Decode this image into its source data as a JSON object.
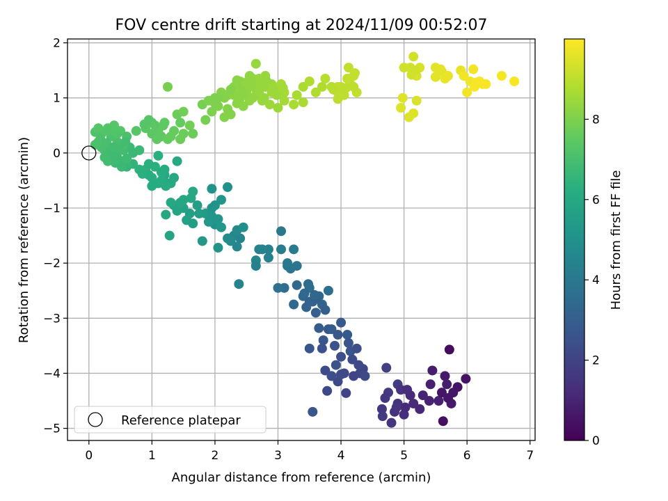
{
  "chart_data": {
    "type": "scatter",
    "title": "FOV centre drift starting at 2024/11/09 00:52:07",
    "xlabel": "Angular distance from reference (arcmin)",
    "ylabel": "Rotation from reference (arcmin)",
    "xlim": [
      -0.34,
      7.08
    ],
    "ylim": [
      -5.22,
      2.07
    ],
    "xticks": [
      0,
      1,
      2,
      3,
      4,
      5,
      6,
      7
    ],
    "yticks": [
      -5,
      -4,
      -3,
      -2,
      -1,
      0,
      1,
      2
    ],
    "xtick_labels": [
      "0",
      "1",
      "2",
      "3",
      "4",
      "5",
      "6",
      "7"
    ],
    "ytick_labels": [
      "−5",
      "−4",
      "−3",
      "−2",
      "−1",
      "0",
      "1",
      "2"
    ],
    "grid": true,
    "colorbar": {
      "label": "Hours from first FF file",
      "range": [
        0,
        10
      ],
      "ticks": [
        0,
        2,
        4,
        6,
        8
      ],
      "tick_labels": [
        "0",
        "2",
        "4",
        "6",
        "8"
      ],
      "colormap": "viridis"
    },
    "legend": {
      "position": "lower-left",
      "entries": [
        "Reference platepar"
      ]
    },
    "reference_point": {
      "x": 0,
      "y": 0,
      "label": "Reference platepar"
    },
    "points": [
      [
        5.72,
        -3.57,
        0.3
      ],
      [
        5.62,
        -4.87,
        0.4
      ],
      [
        5.98,
        -4.1,
        0.5
      ],
      [
        5.78,
        -4.35,
        0.6
      ],
      [
        5.65,
        -4.05,
        0.7
      ],
      [
        5.45,
        -3.95,
        0.8
      ],
      [
        5.55,
        -4.5,
        0.9
      ],
      [
        5.4,
        -4.5,
        1.0
      ],
      [
        5.25,
        -4.65,
        1.1
      ],
      [
        5.1,
        -4.4,
        1.2
      ],
      [
        5.0,
        -4.75,
        1.3
      ],
      [
        4.9,
        -4.55,
        1.4
      ],
      [
        4.8,
        -4.9,
        1.5
      ],
      [
        4.65,
        -4.65,
        1.6
      ],
      [
        4.75,
        -4.35,
        1.7
      ],
      [
        4.9,
        -4.2,
        1.8
      ],
      [
        4.72,
        -3.9,
        1.9
      ],
      [
        5.68,
        -4.2,
        0.8
      ],
      [
        5.75,
        -4.55,
        0.7
      ],
      [
        5.3,
        -4.4,
        1.0
      ],
      [
        5.02,
        -4.62,
        1.2
      ],
      [
        4.85,
        -4.7,
        1.4
      ],
      [
        5.42,
        -4.2,
        0.9
      ],
      [
        5.6,
        -4.35,
        0.6
      ],
      [
        5.85,
        -4.25,
        0.5
      ],
      [
        4.95,
        -4.3,
        1.5
      ],
      [
        4.7,
        -4.45,
        1.6
      ],
      [
        5.15,
        -4.55,
        1.2
      ],
      [
        4.88,
        -4.62,
        1.5
      ],
      [
        5.05,
        -4.3,
        1.3
      ],
      [
        4.66,
        -4.78,
        1.7
      ],
      [
        5.7,
        -4.45,
        0.6
      ],
      [
        4.2,
        -4.05,
        2.0
      ],
      [
        4.35,
        -3.92,
        2.1
      ],
      [
        4.05,
        -4.0,
        2.2
      ],
      [
        3.85,
        -4.05,
        2.3
      ],
      [
        4.0,
        -3.7,
        2.4
      ],
      [
        3.9,
        -3.5,
        2.5
      ],
      [
        4.15,
        -3.6,
        2.6
      ],
      [
        3.8,
        -3.2,
        2.7
      ],
      [
        4.1,
        -3.3,
        2.8
      ],
      [
        4.25,
        -3.55,
        2.4
      ],
      [
        4.3,
        -4.0,
        2.1
      ],
      [
        3.95,
        -4.15,
        2.2
      ],
      [
        3.75,
        -3.95,
        2.3
      ],
      [
        4.08,
        -4.36,
        2.0
      ],
      [
        3.7,
        -3.55,
        2.5
      ],
      [
        3.5,
        -3.55,
        2.6
      ],
      [
        3.55,
        -4.7,
        2.7
      ],
      [
        3.85,
        -4.05,
        2.4
      ],
      [
        3.92,
        -3.85,
        2.5
      ],
      [
        4.18,
        -3.75,
        2.3
      ],
      [
        4.28,
        -3.85,
        2.2
      ],
      [
        4.12,
        -3.45,
        2.6
      ],
      [
        4.0,
        -3.08,
        2.8
      ],
      [
        3.85,
        -3.2,
        2.9
      ],
      [
        3.72,
        -3.4,
        2.7
      ],
      [
        3.65,
        -3.18,
        2.9
      ],
      [
        4.0,
        -4.02,
        2.3
      ],
      [
        3.78,
        -4.32,
        2.2
      ],
      [
        3.95,
        -3.3,
        2.7
      ],
      [
        4.38,
        -4.05,
        2.2
      ],
      [
        3.6,
        -2.9,
        3.0
      ],
      [
        3.55,
        -2.7,
        3.1
      ],
      [
        3.7,
        -2.75,
        3.2
      ],
      [
        3.4,
        -2.6,
        3.3
      ],
      [
        3.3,
        -2.4,
        3.4
      ],
      [
        3.5,
        -2.45,
        3.5
      ],
      [
        3.8,
        -2.5,
        3.6
      ],
      [
        3.65,
        -2.6,
        3.3
      ],
      [
        3.45,
        -2.8,
        3.2
      ],
      [
        3.25,
        -2.75,
        3.4
      ],
      [
        3.1,
        -2.45,
        3.6
      ],
      [
        3.0,
        -2.45,
        3.7
      ],
      [
        3.2,
        -2.1,
        3.8
      ],
      [
        3.15,
        -2.05,
        3.9
      ],
      [
        3.3,
        -2.05,
        3.9
      ],
      [
        3.5,
        -2.7,
        3.2
      ],
      [
        3.6,
        -2.65,
        3.1
      ],
      [
        3.42,
        -2.55,
        3.4
      ],
      [
        3.58,
        -2.58,
        3.3
      ],
      [
        3.75,
        -2.85,
        3.0
      ],
      [
        3.48,
        -2.38,
        3.5
      ],
      [
        3.05,
        -1.42,
        4.0
      ],
      [
        3.25,
        -1.75,
        4.1
      ],
      [
        3.05,
        -1.75,
        4.2
      ],
      [
        2.85,
        -1.75,
        4.3
      ],
      [
        2.7,
        -1.75,
        4.4
      ],
      [
        2.65,
        -1.95,
        4.5
      ],
      [
        2.65,
        -2.05,
        4.3
      ],
      [
        2.38,
        -2.38,
        4.4
      ],
      [
        2.4,
        -1.55,
        4.5
      ],
      [
        2.3,
        -1.5,
        4.6
      ],
      [
        2.35,
        -1.4,
        4.7
      ],
      [
        2.2,
        -1.55,
        4.8
      ],
      [
        2.35,
        -1.7,
        4.6
      ],
      [
        2.75,
        -1.75,
        4.4
      ],
      [
        2.85,
        -1.9,
        4.3
      ],
      [
        3.15,
        -2.0,
        4.0
      ],
      [
        2.25,
        -1.6,
        4.7
      ],
      [
        2.45,
        -1.35,
        4.9
      ],
      [
        2.0,
        -1.3,
        5.0
      ],
      [
        1.95,
        -1.0,
        5.1
      ],
      [
        2.05,
        -1.2,
        5.2
      ],
      [
        2.1,
        -1.35,
        5.3
      ],
      [
        1.85,
        -1.1,
        5.4
      ],
      [
        1.75,
        -1.1,
        5.5
      ],
      [
        1.6,
        -1.1,
        5.6
      ],
      [
        1.5,
        -1.0,
        5.7
      ],
      [
        1.35,
        -0.95,
        5.8
      ],
      [
        1.5,
        -0.85,
        5.9
      ],
      [
        1.65,
        -0.7,
        6.0
      ],
      [
        1.8,
        -1.6,
        5.3
      ],
      [
        1.95,
        -0.65,
        5.1
      ],
      [
        2.2,
        -0.62,
        5.0
      ],
      [
        2.1,
        -0.85,
        5.2
      ],
      [
        1.9,
        -1.25,
        5.3
      ],
      [
        1.72,
        -0.95,
        5.6
      ],
      [
        1.28,
        -1.5,
        5.8
      ],
      [
        1.55,
        -1.22,
        5.7
      ],
      [
        1.65,
        -1.28,
        5.5
      ],
      [
        2.05,
        -1.72,
        5.1
      ],
      [
        1.22,
        -1.12,
        5.9
      ],
      [
        1.4,
        -1.05,
        5.8
      ],
      [
        1.62,
        -0.82,
        5.9
      ],
      [
        1.95,
        -1.15,
        5.2
      ],
      [
        2.0,
        -0.95,
        5.1
      ],
      [
        1.3,
        -0.9,
        6.0
      ],
      [
        1.45,
        -0.9,
        5.9
      ],
      [
        1.2,
        -0.4,
        6.0
      ],
      [
        1.1,
        -0.55,
        6.1
      ],
      [
        1.0,
        -0.45,
        6.2
      ],
      [
        1.05,
        -0.25,
        6.3
      ],
      [
        0.9,
        -0.3,
        6.4
      ],
      [
        0.8,
        -0.3,
        6.4
      ],
      [
        0.7,
        -0.2,
        6.5
      ],
      [
        0.55,
        -0.15,
        6.6
      ],
      [
        0.4,
        -0.1,
        6.7
      ],
      [
        0.3,
        -0.05,
        6.8
      ],
      [
        1.4,
        -0.15,
        6.0
      ],
      [
        1.25,
        -0.55,
        6.1
      ],
      [
        1.15,
        -0.35,
        6.2
      ],
      [
        0.95,
        -0.4,
        6.2
      ],
      [
        1.3,
        -0.55,
        6.0
      ],
      [
        1.2,
        -0.3,
        6.1
      ],
      [
        1.35,
        -0.45,
        6.0
      ],
      [
        1.15,
        -0.5,
        6.2
      ],
      [
        1.0,
        -0.6,
        6.1
      ],
      [
        1.1,
        -0.05,
        6.3
      ],
      [
        0.95,
        -0.2,
        6.3
      ],
      [
        1.22,
        -0.6,
        6.1
      ],
      [
        0.85,
        -0.38,
        6.3
      ],
      [
        0.35,
        -0.1,
        6.9
      ],
      [
        0.25,
        0.15,
        7.0
      ],
      [
        0.15,
        0.2,
        7.1
      ],
      [
        0.2,
        0.35,
        7.2
      ],
      [
        0.3,
        0.45,
        7.2
      ],
      [
        0.4,
        0.5,
        7.3
      ],
      [
        0.5,
        0.4,
        7.3
      ],
      [
        0.6,
        0.3,
        7.1
      ],
      [
        0.1,
        0.38,
        7.2
      ],
      [
        0.3,
        0.1,
        6.9
      ],
      [
        0.45,
        0.2,
        7.0
      ],
      [
        0.55,
        0.05,
        6.9
      ],
      [
        0.65,
        0.1,
        6.8
      ],
      [
        0.7,
        0.0,
        6.7
      ],
      [
        0.8,
        0.05,
        6.7
      ],
      [
        0.25,
        0.05,
        6.9
      ],
      [
        0.45,
        -0.08,
        6.8
      ],
      [
        0.5,
        -0.2,
        6.7
      ],
      [
        0.6,
        -0.25,
        6.6
      ],
      [
        0.4,
        0.0,
        6.8
      ],
      [
        0.35,
        0.3,
        7.1
      ],
      [
        0.15,
        0.45,
        7.3
      ],
      [
        0.2,
        0.1,
        7.0
      ],
      [
        0.3,
        -0.15,
        6.9
      ],
      [
        0.45,
        0.35,
        7.2
      ],
      [
        0.55,
        0.15,
        7.0
      ],
      [
        0.38,
        -0.05,
        6.8
      ],
      [
        0.6,
        -0.1,
        6.8
      ],
      [
        0.1,
        0.15,
        7.1
      ],
      [
        0.25,
        -0.08,
        6.9
      ],
      [
        0.18,
        0.25,
        7.1
      ],
      [
        0.28,
        0.18,
        7.0
      ],
      [
        0.38,
        0.1,
        6.9
      ],
      [
        0.48,
        0.08,
        6.9
      ],
      [
        0.58,
        0.2,
        6.9
      ],
      [
        0.42,
        -0.18,
        6.8
      ],
      [
        0.52,
        -0.25,
        6.7
      ],
      [
        0.32,
        0.4,
        7.2
      ],
      [
        0.75,
        0.4,
        7.3
      ],
      [
        0.9,
        0.45,
        7.4
      ],
      [
        1.0,
        0.55,
        7.4
      ],
      [
        1.1,
        0.4,
        7.5
      ],
      [
        1.2,
        0.55,
        7.5
      ],
      [
        1.3,
        0.3,
        7.6
      ],
      [
        1.45,
        0.55,
        7.6
      ],
      [
        1.5,
        0.35,
        7.7
      ],
      [
        0.95,
        0.6,
        7.3
      ],
      [
        1.05,
        0.5,
        7.4
      ],
      [
        1.15,
        0.3,
        7.5
      ],
      [
        1.4,
        0.7,
        7.7
      ],
      [
        1.5,
        0.75,
        7.8
      ],
      [
        1.6,
        0.5,
        7.8
      ],
      [
        1.25,
        1.2,
        7.9
      ],
      [
        1.65,
        0.35,
        7.7
      ],
      [
        1.0,
        0.35,
        7.4
      ],
      [
        1.08,
        0.25,
        7.5
      ],
      [
        1.18,
        0.5,
        7.5
      ],
      [
        1.35,
        0.4,
        7.6
      ],
      [
        1.25,
        0.25,
        7.6
      ],
      [
        1.45,
        0.25,
        7.7
      ],
      [
        0.88,
        0.52,
        7.3
      ],
      [
        1.8,
        0.88,
        7.9
      ],
      [
        1.9,
        0.95,
        8.0
      ],
      [
        2.0,
        1.0,
        8.0
      ],
      [
        2.1,
        1.1,
        8.1
      ],
      [
        2.2,
        1.05,
        8.1
      ],
      [
        2.3,
        1.2,
        8.2
      ],
      [
        2.4,
        1.3,
        8.2
      ],
      [
        2.5,
        1.25,
        8.3
      ],
      [
        2.6,
        1.35,
        8.3
      ],
      [
        2.7,
        1.35,
        8.4
      ],
      [
        2.8,
        1.4,
        8.4
      ],
      [
        2.9,
        1.25,
        8.5
      ],
      [
        3.0,
        1.15,
        8.5
      ],
      [
        3.1,
        1.1,
        8.6
      ],
      [
        2.4,
        1.0,
        8.2
      ],
      [
        2.5,
        1.1,
        8.3
      ],
      [
        2.6,
        1.2,
        8.3
      ],
      [
        2.65,
        1.05,
        8.3
      ],
      [
        2.75,
        0.95,
        8.4
      ],
      [
        2.55,
        0.95,
        8.3
      ],
      [
        2.45,
        1.05,
        8.2
      ],
      [
        2.35,
        0.9,
        8.2
      ],
      [
        2.2,
        0.8,
        8.1
      ],
      [
        2.15,
        0.65,
        8.1
      ],
      [
        2.25,
        0.7,
        8.1
      ],
      [
        1.85,
        0.6,
        7.9
      ],
      [
        1.95,
        0.75,
        8.0
      ],
      [
        2.05,
        0.85,
        8.0
      ],
      [
        2.3,
        1.05,
        8.2
      ],
      [
        2.55,
        1.4,
        8.3
      ],
      [
        2.65,
        1.62,
        8.4
      ],
      [
        2.8,
        1.2,
        8.4
      ],
      [
        2.9,
        1.1,
        8.5
      ],
      [
        3.0,
        0.82,
        8.5
      ],
      [
        3.1,
        0.95,
        8.6
      ],
      [
        2.7,
        1.1,
        8.4
      ],
      [
        2.6,
        1.0,
        8.3
      ],
      [
        2.42,
        1.15,
        8.2
      ],
      [
        2.52,
        1.3,
        8.3
      ],
      [
        2.62,
        1.28,
        8.3
      ],
      [
        2.72,
        1.25,
        8.4
      ],
      [
        2.82,
        1.3,
        8.4
      ],
      [
        2.92,
        1.2,
        8.5
      ],
      [
        3.05,
        1.25,
        8.6
      ],
      [
        2.35,
        1.25,
        8.2
      ],
      [
        2.25,
        1.15,
        8.1
      ],
      [
        2.15,
        1.0,
        8.1
      ],
      [
        2.05,
        1.0,
        8.0
      ],
      [
        2.0,
        0.9,
        8.0
      ],
      [
        2.45,
        0.85,
        8.2
      ],
      [
        2.35,
        1.32,
        8.2
      ],
      [
        2.78,
        1.0,
        8.4
      ],
      [
        2.87,
        0.88,
        8.5
      ],
      [
        2.98,
        1.05,
        8.5
      ],
      [
        3.08,
        1.18,
        8.6
      ],
      [
        3.3,
        1.05,
        8.7
      ],
      [
        3.4,
        1.2,
        8.7
      ],
      [
        3.5,
        1.3,
        8.8
      ],
      [
        3.6,
        1.1,
        8.8
      ],
      [
        3.75,
        1.35,
        8.9
      ],
      [
        3.85,
        1.2,
        8.9
      ],
      [
        3.95,
        1.1,
        9.0
      ],
      [
        4.0,
        1.2,
        9.0
      ],
      [
        4.05,
        1.05,
        9.0
      ],
      [
        4.15,
        1.25,
        9.1
      ],
      [
        4.2,
        1.4,
        9.1
      ],
      [
        4.25,
        1.1,
        9.1
      ],
      [
        4.12,
        1.55,
        9.1
      ],
      [
        3.95,
        0.98,
        9.0
      ],
      [
        3.4,
        0.92,
        8.7
      ],
      [
        3.25,
        0.88,
        8.7
      ],
      [
        3.7,
        1.2,
        8.8
      ],
      [
        4.1,
        1.35,
        9.1
      ],
      [
        4.22,
        1.45,
        9.1
      ],
      [
        4.2,
        1.2,
        9.0
      ],
      [
        3.95,
        1.2,
        9.0
      ],
      [
        3.88,
        1.15,
        8.9
      ],
      [
        4.08,
        1.18,
        9.0
      ],
      [
        5.0,
        1.55,
        9.3
      ],
      [
        5.1,
        1.55,
        9.3
      ],
      [
        5.15,
        1.75,
        9.3
      ],
      [
        5.2,
        1.4,
        9.4
      ],
      [
        5.25,
        1.55,
        9.4
      ],
      [
        5.2,
        0.95,
        9.4
      ],
      [
        5.15,
        0.72,
        9.5
      ],
      [
        5.08,
        0.65,
        9.5
      ],
      [
        4.98,
        1.0,
        9.5
      ],
      [
        4.95,
        0.82,
        9.5
      ],
      [
        5.5,
        1.55,
        9.6
      ],
      [
        5.5,
        1.38,
        9.6
      ],
      [
        5.6,
        1.48,
        9.6
      ],
      [
        5.7,
        1.4,
        9.7
      ],
      [
        5.65,
        1.35,
        9.7
      ],
      [
        5.9,
        1.5,
        9.7
      ],
      [
        5.95,
        1.4,
        9.8
      ],
      [
        6.05,
        1.3,
        9.8
      ],
      [
        6.1,
        1.52,
        9.8
      ],
      [
        6.0,
        1.1,
        9.8
      ],
      [
        6.12,
        1.2,
        9.9
      ],
      [
        6.2,
        1.3,
        9.9
      ],
      [
        6.25,
        1.25,
        9.9
      ],
      [
        6.55,
        1.4,
        9.9
      ],
      [
        6.75,
        1.3,
        9.9
      ],
      [
        5.18,
        1.5,
        9.3
      ],
      [
        5.12,
        1.42,
        9.3
      ],
      [
        5.58,
        1.52,
        9.6
      ],
      [
        6.15,
        1.28,
        9.9
      ],
      [
        6.3,
        1.25,
        9.9
      ]
    ]
  }
}
